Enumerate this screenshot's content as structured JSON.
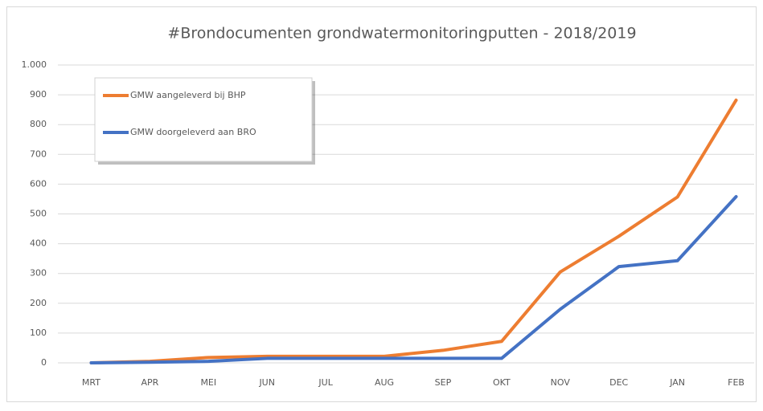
{
  "chart_data": {
    "type": "line",
    "title": "#Brondocumenten grondwatermonitoringputten - 2018/2019",
    "categories": [
      "MRT",
      "APR",
      "MEI",
      "JUN",
      "JUL",
      "AUG",
      "SEP",
      "OKT",
      "NOV",
      "DEC",
      "JAN",
      "FEB"
    ],
    "series": [
      {
        "name": "GMW aangeleverd bij BHP",
        "color": "#ed7d31",
        "values": [
          0,
          5,
          18,
          22,
          22,
          22,
          42,
          72,
          305,
          425,
          557,
          882
        ]
      },
      {
        "name": "GMW doorgeleverd aan BRO",
        "color": "#4472c4",
        "values": [
          0,
          2,
          5,
          15,
          15,
          15,
          15,
          15,
          180,
          323,
          343,
          558
        ]
      }
    ],
    "ylim": [
      0,
      1000
    ],
    "yticks": [
      0,
      100,
      200,
      300,
      400,
      500,
      600,
      700,
      800,
      900,
      {
        "value": 1000,
        "label": "1.000"
      }
    ],
    "grid": true,
    "legend": "top-left"
  }
}
